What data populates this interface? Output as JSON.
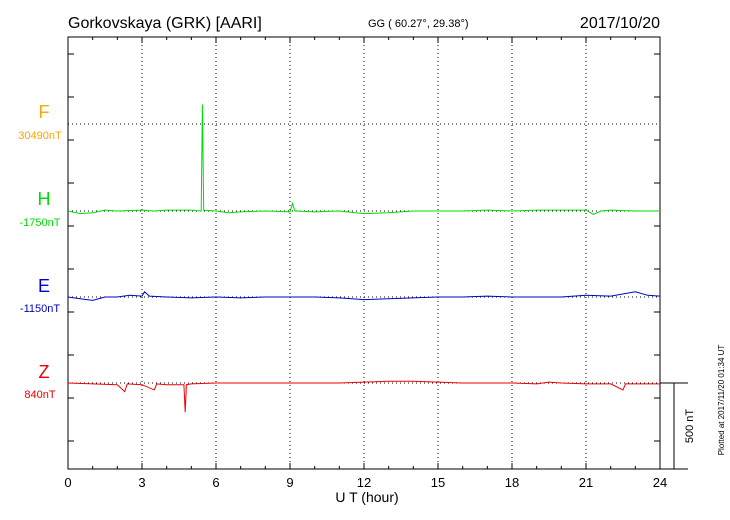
{
  "header": {
    "station": "Gorkovskaya (GRK)  [AARI]",
    "coords": "GG ( 60.27°,  29.38°)",
    "date": "2017/10/20"
  },
  "footer": {
    "plotted": "Plotted at 2017/11/20 01:34 UT"
  },
  "chart_data": {
    "type": "line",
    "xlabel": "U T (hour)",
    "xlim": [
      0,
      24
    ],
    "x_ticks": [
      "0",
      "3",
      "6",
      "9",
      "12",
      "15",
      "18",
      "21",
      "24"
    ],
    "grid": true,
    "scale_bar": {
      "label": "500 nT",
      "value_nT": 500
    },
    "series": [
      {
        "name": "F",
        "baseline_label": "30490nT",
        "color": "#ffa500",
        "points": []
      },
      {
        "name": "H",
        "baseline_label": "-1750nT",
        "color": "#00dd00",
        "points": [
          [
            0,
            0
          ],
          [
            0.5,
            -15
          ],
          [
            1,
            -10
          ],
          [
            1.5,
            5
          ],
          [
            2,
            0
          ],
          [
            3,
            5
          ],
          [
            3.5,
            0
          ],
          [
            4,
            5
          ],
          [
            5,
            5
          ],
          [
            5.4,
            0
          ],
          [
            5.45,
            620
          ],
          [
            5.5,
            5
          ],
          [
            6,
            0
          ],
          [
            6.5,
            -10
          ],
          [
            7,
            -5
          ],
          [
            8,
            0
          ],
          [
            9,
            -5
          ],
          [
            9.1,
            45
          ],
          [
            9.2,
            0
          ],
          [
            10,
            -5
          ],
          [
            11,
            0
          ],
          [
            12,
            -15
          ],
          [
            13,
            -10
          ],
          [
            14,
            0
          ],
          [
            15,
            0
          ],
          [
            16,
            0
          ],
          [
            17,
            5
          ],
          [
            18,
            0
          ],
          [
            19,
            5
          ],
          [
            20,
            5
          ],
          [
            21,
            5
          ],
          [
            21.3,
            -20
          ],
          [
            21.6,
            0
          ],
          [
            22,
            5
          ],
          [
            23,
            0
          ],
          [
            24,
            0
          ]
        ]
      },
      {
        "name": "E",
        "baseline_label": "-1150nT",
        "color": "#0000cc",
        "points": [
          [
            0,
            0
          ],
          [
            0.5,
            -10
          ],
          [
            1,
            -20
          ],
          [
            1.5,
            0
          ],
          [
            2,
            0
          ],
          [
            2.5,
            10
          ],
          [
            3,
            5
          ],
          [
            3.1,
            30
          ],
          [
            3.3,
            5
          ],
          [
            4,
            0
          ],
          [
            5,
            -5
          ],
          [
            6,
            0
          ],
          [
            7,
            -5
          ],
          [
            8,
            0
          ],
          [
            9,
            0
          ],
          [
            10,
            0
          ],
          [
            11,
            -5
          ],
          [
            12,
            -15
          ],
          [
            13,
            -10
          ],
          [
            14,
            -5
          ],
          [
            15,
            0
          ],
          [
            16,
            0
          ],
          [
            17,
            5
          ],
          [
            18,
            0
          ],
          [
            19,
            0
          ],
          [
            20,
            0
          ],
          [
            21,
            10
          ],
          [
            22,
            5
          ],
          [
            23,
            30
          ],
          [
            23.5,
            10
          ],
          [
            24,
            5
          ]
        ]
      },
      {
        "name": "Z",
        "baseline_label": "840nT",
        "color": "#ee0000",
        "points": [
          [
            0,
            0
          ],
          [
            1,
            -5
          ],
          [
            2,
            -10
          ],
          [
            2.3,
            -50
          ],
          [
            2.4,
            -5
          ],
          [
            3,
            -10
          ],
          [
            3.5,
            -40
          ],
          [
            3.6,
            -5
          ],
          [
            4,
            -10
          ],
          [
            4.7,
            -10
          ],
          [
            4.75,
            -170
          ],
          [
            4.8,
            -10
          ],
          [
            5,
            -5
          ],
          [
            6,
            0
          ],
          [
            7,
            0
          ],
          [
            8,
            0
          ],
          [
            9,
            0
          ],
          [
            10,
            0
          ],
          [
            11,
            0
          ],
          [
            12,
            5
          ],
          [
            13,
            10
          ],
          [
            14,
            10
          ],
          [
            15,
            5
          ],
          [
            16,
            0
          ],
          [
            17,
            0
          ],
          [
            18,
            0
          ],
          [
            19,
            -5
          ],
          [
            19.5,
            5
          ],
          [
            20,
            0
          ],
          [
            21,
            -5
          ],
          [
            22,
            -5
          ],
          [
            22.5,
            -40
          ],
          [
            22.6,
            -5
          ],
          [
            23,
            -5
          ],
          [
            24,
            -5
          ]
        ]
      }
    ]
  }
}
